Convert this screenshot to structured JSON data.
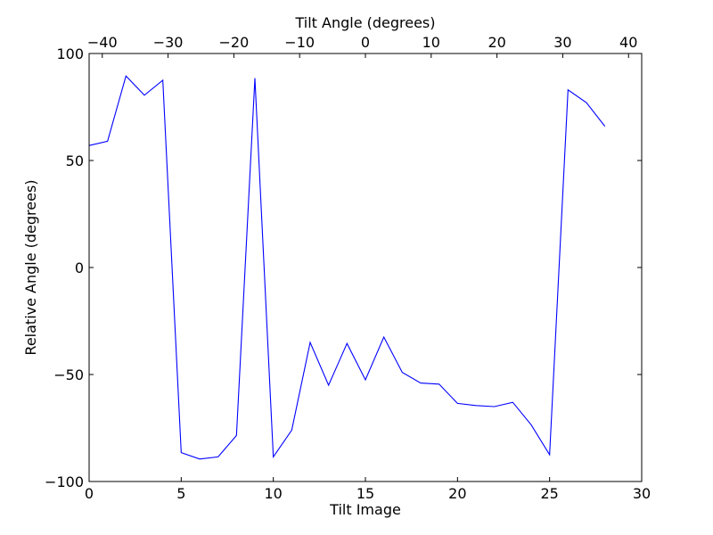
{
  "chart_data": {
    "type": "line",
    "xlabel": "Tilt Image",
    "ylabel": "Relative Angle (degrees)",
    "top_xlabel": "Tilt Angle (degrees)",
    "xlim": [
      0,
      30
    ],
    "ylim": [
      -100,
      100
    ],
    "top_xlim": [
      -42,
      42
    ],
    "xticks": [
      0,
      5,
      10,
      15,
      20,
      25,
      30
    ],
    "xtick_labels": [
      "0",
      "5",
      "10",
      "15",
      "20",
      "25",
      "30"
    ],
    "yticks": [
      -100,
      -50,
      0,
      50,
      100
    ],
    "ytick_labels": [
      "−100",
      "−50",
      "0",
      "50",
      "100"
    ],
    "top_xticks": [
      -40,
      -30,
      -20,
      -10,
      0,
      10,
      20,
      30,
      40
    ],
    "top_xtick_labels": [
      "−40",
      "−30",
      "−20",
      "−10",
      "0",
      "10",
      "20",
      "30",
      "40"
    ],
    "grid": false,
    "series": [
      {
        "color": "#0000ff",
        "x": [
          0,
          1,
          2,
          3,
          4,
          5,
          6,
          7,
          8,
          9,
          10,
          11,
          12,
          13,
          14,
          15,
          16,
          17,
          18,
          19,
          20,
          21,
          22,
          23,
          24,
          25,
          26,
          27,
          28
        ],
        "y": [
          57,
          59,
          89.5,
          80.5,
          87.5,
          -86.5,
          -89.5,
          -88.5,
          -78.5,
          88.5,
          -88.5,
          -76,
          -35,
          -55,
          -35.5,
          -52.5,
          -32.5,
          -49,
          -54,
          -54.5,
          -63.5,
          -64.5,
          -65,
          -63,
          -73.5,
          -87.5,
          83,
          77,
          66
        ]
      }
    ]
  }
}
